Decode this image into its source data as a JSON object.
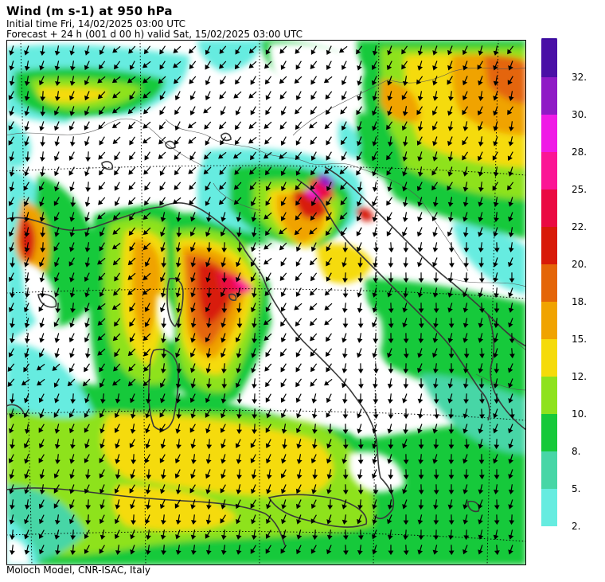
{
  "header": {
    "title": "Wind (m s-1) at 950 hPa",
    "initial_time": "Initial time  Fri, 14/02/2025  03:00 UTC",
    "forecast": "Forecast  +  24 h  (001 d 00 h)  valid Sat, 15/02/2025 03:00 UTC"
  },
  "footer": {
    "credit": "Moloch Model, CNR-ISAC, Italy"
  },
  "legend": {
    "levels": [
      {
        "label": "2.",
        "color": "#66ece0"
      },
      {
        "label": "5.",
        "color": "#47d6a6"
      },
      {
        "label": "8.",
        "color": "#16c93a"
      },
      {
        "label": "10.",
        "color": "#8ee21d"
      },
      {
        "label": "12.",
        "color": "#f5db0a"
      },
      {
        "label": "15.",
        "color": "#f0a300"
      },
      {
        "label": "18.",
        "color": "#e46508"
      },
      {
        "label": "20.",
        "color": "#d81a08"
      },
      {
        "label": "22.",
        "color": "#ea0a42"
      },
      {
        "label": "25.",
        "color": "#fb1595"
      },
      {
        "label": "28.",
        "color": "#ef1ae6"
      },
      {
        "label": "30.",
        "color": "#8f1ac6"
      },
      {
        "label": "32.",
        "color": "#4a0fa6"
      }
    ],
    "overflow_color": "#3b0da0"
  },
  "map": {
    "border_color": "#000000",
    "coast_color": "#3a3a3a"
  }
}
